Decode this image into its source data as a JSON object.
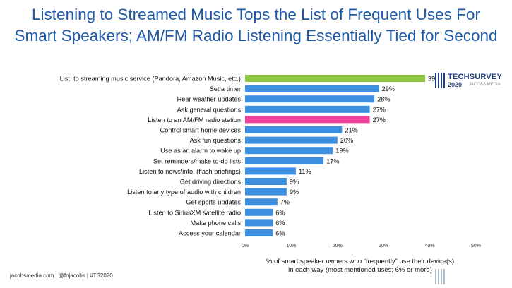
{
  "title_lines": [
    "Listening to Streamed Music Tops the List of Frequent Uses For",
    "Smart Speakers; AM/FM Radio Listening Essentially Tied for Second"
  ],
  "footer": "jacobsmedia.com  |  @fnjacobs  |  #TS2020",
  "logo": {
    "name": "TECHSURVEY",
    "year": "2020",
    "sub": "JACOBS MEDIA"
  },
  "chart_data": {
    "type": "bar",
    "orientation": "horizontal",
    "categories": [
      "List. to streaming music service (Pandora, Amazon Music, etc.)",
      "Set a timer",
      "Hear weather updates",
      "Ask general questions",
      "Listen to an AM/FM radio station",
      "Control smart home devices",
      "Ask fun questions",
      "Use as an alarm to wake up",
      "Set reminders/make to-do lists",
      "Listen to news/info. (flash briefings)",
      "Get driving directions",
      "Listen to any type of audio with children",
      "Get sports updates",
      "Listen to SiriusXM satellite radio",
      "Make phone calls",
      "Access your calendar"
    ],
    "values": [
      39,
      29,
      28,
      27,
      27,
      21,
      20,
      19,
      17,
      11,
      9,
      9,
      7,
      6,
      6,
      6
    ],
    "value_labels": [
      "39%",
      "29%",
      "28%",
      "27%",
      "27%",
      "21%",
      "20%",
      "19%",
      "17%",
      "11%",
      "9%",
      "9%",
      "7%",
      "6%",
      "6%",
      "6%"
    ],
    "bar_colors": [
      "#8dc63f",
      "#3d8fe0",
      "#3d8fe0",
      "#3d8fe0",
      "#f0419b",
      "#3d8fe0",
      "#3d8fe0",
      "#3d8fe0",
      "#3d8fe0",
      "#3d8fe0",
      "#3d8fe0",
      "#3d8fe0",
      "#3d8fe0",
      "#3d8fe0",
      "#3d8fe0",
      "#3d8fe0"
    ],
    "xlim": [
      0,
      50
    ],
    "xticks": [
      0,
      10,
      20,
      30,
      40,
      50
    ],
    "xtick_labels": [
      "0%",
      "10%",
      "20%",
      "30%",
      "40%",
      "50%"
    ],
    "xlabel_lines": [
      "% of smart speaker owners who “frequently” use their device(s)",
      "in each way (most mentioned uses; 6% or more)"
    ],
    "grid": false
  }
}
